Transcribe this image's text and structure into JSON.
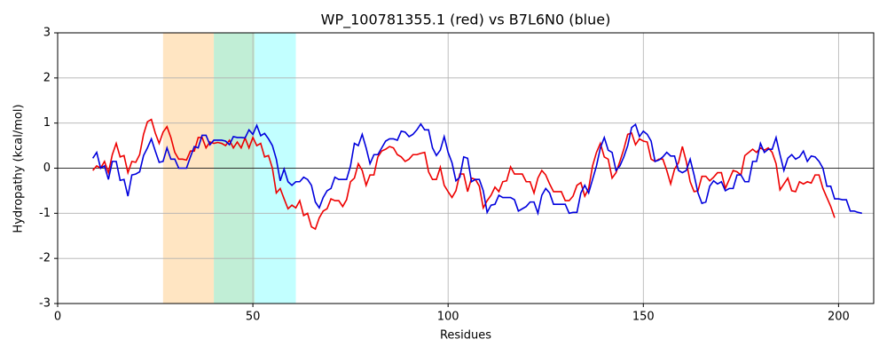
{
  "chart_data": {
    "type": "line",
    "title": "WP_100781355.1 (red) vs B7L6N0 (blue)",
    "xlabel": "Residues",
    "ylabel": "Hydropathy (kcal/mol)",
    "xlim": [
      0,
      209
    ],
    "ylim": [
      -3,
      3
    ],
    "xticks": [
      0,
      50,
      100,
      150,
      200
    ],
    "yticks": [
      -3,
      -2,
      -1,
      0,
      1,
      2,
      3
    ],
    "grid": true,
    "hline": 0,
    "spans": [
      {
        "start": 27,
        "end": 40,
        "color": "#ffe5c2"
      },
      {
        "start": 40,
        "end": 50.5,
        "color": "#c1eed6"
      },
      {
        "start": 50.5,
        "end": 61,
        "color": "#c2ffff"
      }
    ],
    "series": [
      {
        "color": "#ee0000",
        "x": [
          9,
          10,
          11,
          12,
          13,
          14,
          15,
          16,
          17,
          18,
          19,
          20,
          21,
          22,
          23,
          24,
          25,
          26,
          27,
          28,
          29,
          30,
          31,
          32,
          33,
          34,
          35,
          36,
          37,
          38,
          39,
          40,
          41,
          42,
          43,
          44,
          45,
          46,
          47,
          48,
          49,
          50,
          51,
          52,
          53,
          54,
          55,
          56,
          57,
          58,
          59,
          60,
          61,
          62,
          63,
          64,
          65,
          66,
          67,
          68,
          69,
          70,
          71,
          72,
          73,
          74,
          75,
          76,
          77,
          78,
          79,
          80,
          81,
          82,
          83,
          84,
          85,
          86,
          87,
          88,
          89,
          90,
          91,
          92,
          93,
          94,
          95,
          96,
          97,
          98,
          99,
          100,
          101,
          102,
          103,
          104,
          105,
          106,
          107,
          108,
          109,
          110,
          111,
          112,
          113,
          114,
          115,
          116,
          117,
          118,
          119,
          120,
          121,
          122,
          123,
          124,
          125,
          126,
          127,
          128,
          129,
          130,
          131,
          132,
          133,
          134,
          135,
          136,
          137,
          138,
          139,
          140,
          141,
          142,
          143,
          144,
          145,
          146,
          147,
          148,
          149,
          150,
          151,
          152,
          153,
          154,
          155,
          156,
          157,
          158,
          159,
          160,
          161,
          162,
          163,
          164,
          165,
          166,
          167,
          168,
          169,
          170,
          171,
          172,
          173,
          174,
          175,
          176,
          177,
          178,
          179,
          180,
          181,
          182,
          183,
          184,
          185,
          186,
          187,
          188,
          189,
          190,
          191,
          192,
          193,
          194,
          195,
          196,
          197,
          198,
          199
        ],
        "values": [
          -0.05,
          0.05,
          0.0,
          0.15,
          -0.1,
          0.3,
          0.55,
          0.25,
          0.28,
          -0.1,
          0.15,
          0.13,
          0.3,
          0.75,
          1.03,
          1.08,
          0.78,
          0.55,
          0.8,
          0.92,
          0.68,
          0.35,
          0.2,
          0.2,
          0.18,
          0.38,
          0.38,
          0.68,
          0.68,
          0.45,
          0.58,
          0.55,
          0.57,
          0.55,
          0.5,
          0.62,
          0.45,
          0.58,
          0.45,
          0.67,
          0.45,
          0.68,
          0.5,
          0.55,
          0.25,
          0.28,
          0.0,
          -0.55,
          -0.45,
          -0.68,
          -0.9,
          -0.82,
          -0.88,
          -0.72,
          -1.05,
          -1.0,
          -1.3,
          -1.35,
          -1.1,
          -0.95,
          -0.9,
          -0.68,
          -0.72,
          -0.72,
          -0.85,
          -0.7,
          -0.3,
          -0.22,
          0.1,
          -0.05,
          -0.38,
          -0.15,
          -0.15,
          0.25,
          0.38,
          0.42,
          0.48,
          0.45,
          0.3,
          0.25,
          0.15,
          0.2,
          0.3,
          0.3,
          0.33,
          0.35,
          -0.08,
          -0.25,
          -0.25,
          0.02,
          -0.38,
          -0.52,
          -0.65,
          -0.5,
          -0.13,
          -0.13,
          -0.52,
          -0.22,
          -0.25,
          -0.4,
          -0.88,
          -0.72,
          -0.6,
          -0.42,
          -0.52,
          -0.3,
          -0.28,
          0.03,
          -0.13,
          -0.13,
          -0.13,
          -0.3,
          -0.3,
          -0.55,
          -0.22,
          -0.05,
          -0.15,
          -0.35,
          -0.52,
          -0.52,
          -0.52,
          -0.72,
          -0.72,
          -0.62,
          -0.38,
          -0.32,
          -0.62,
          -0.45,
          0.05,
          0.35,
          0.55,
          0.25,
          0.2,
          -0.22,
          -0.1,
          0.15,
          0.42,
          0.75,
          0.78,
          0.52,
          0.65,
          0.6,
          0.58,
          0.2,
          0.15,
          0.2,
          0.2,
          -0.05,
          -0.35,
          -0.02,
          0.12,
          0.48,
          0.15,
          -0.3,
          -0.52,
          -0.5,
          -0.18,
          -0.18,
          -0.28,
          -0.2,
          -0.1,
          -0.1,
          -0.45,
          -0.25,
          -0.05,
          -0.08,
          -0.15,
          0.28,
          0.35,
          0.42,
          0.35,
          0.45,
          0.4,
          0.45,
          0.35,
          0.1,
          -0.48,
          -0.35,
          -0.22,
          -0.5,
          -0.52,
          -0.3,
          -0.35,
          -0.3,
          -0.33,
          -0.15,
          -0.15,
          -0.45,
          -0.65,
          -0.85,
          -1.1
        ]
      },
      {
        "color": "#0000dd",
        "x": [
          9,
          10,
          11,
          12,
          13,
          14,
          15,
          16,
          17,
          18,
          19,
          20,
          21,
          22,
          23,
          24,
          25,
          26,
          27,
          28,
          29,
          30,
          31,
          32,
          33,
          34,
          35,
          36,
          37,
          38,
          39,
          40,
          41,
          42,
          43,
          44,
          45,
          46,
          47,
          48,
          49,
          50,
          51,
          52,
          53,
          54,
          55,
          56,
          57,
          58,
          59,
          60,
          61,
          62,
          63,
          64,
          65,
          66,
          67,
          68,
          69,
          70,
          71,
          72,
          73,
          74,
          75,
          76,
          77,
          78,
          79,
          80,
          81,
          82,
          83,
          84,
          85,
          86,
          87,
          88,
          89,
          90,
          91,
          92,
          93,
          94,
          95,
          96,
          97,
          98,
          99,
          100,
          101,
          102,
          103,
          104,
          105,
          106,
          107,
          108,
          109,
          110,
          111,
          112,
          113,
          114,
          115,
          116,
          117,
          118,
          119,
          120,
          121,
          122,
          123,
          124,
          125,
          126,
          127,
          128,
          129,
          130,
          131,
          132,
          133,
          134,
          135,
          136,
          137,
          138,
          139,
          140,
          141,
          142,
          143,
          144,
          145,
          146,
          147,
          148,
          149,
          150,
          151,
          152,
          153,
          154,
          155,
          156,
          157,
          158,
          159,
          160,
          161,
          162,
          163,
          164,
          165,
          166,
          167,
          168,
          169,
          170,
          171,
          172,
          173,
          174,
          175,
          176,
          177,
          178,
          179,
          180,
          181,
          182,
          183,
          184,
          185,
          186,
          187,
          188,
          189,
          190,
          191,
          192,
          193,
          194,
          195,
          196,
          197,
          198,
          199,
          200,
          201,
          202,
          203,
          204,
          205,
          206
        ],
        "values": [
          0.22,
          0.35,
          0.0,
          0.05,
          -0.25,
          0.15,
          0.15,
          -0.27,
          -0.25,
          -0.62,
          -0.15,
          -0.13,
          -0.08,
          0.28,
          0.45,
          0.65,
          0.38,
          0.13,
          0.15,
          0.45,
          0.2,
          0.2,
          0.0,
          0.0,
          0.0,
          0.25,
          0.48,
          0.45,
          0.73,
          0.73,
          0.52,
          0.62,
          0.62,
          0.62,
          0.6,
          0.52,
          0.7,
          0.68,
          0.68,
          0.67,
          0.85,
          0.75,
          0.95,
          0.72,
          0.77,
          0.65,
          0.5,
          0.2,
          -0.28,
          -0.02,
          -0.3,
          -0.38,
          -0.3,
          -0.3,
          -0.2,
          -0.25,
          -0.38,
          -0.75,
          -0.88,
          -0.65,
          -0.5,
          -0.45,
          -0.2,
          -0.25,
          -0.25,
          -0.25,
          0.05,
          0.55,
          0.5,
          0.75,
          0.45,
          0.1,
          0.3,
          0.3,
          0.45,
          0.6,
          0.65,
          0.65,
          0.62,
          0.82,
          0.8,
          0.7,
          0.75,
          0.85,
          0.98,
          0.85,
          0.85,
          0.45,
          0.28,
          0.4,
          0.7,
          0.35,
          0.12,
          -0.28,
          -0.2,
          0.25,
          0.22,
          -0.3,
          -0.25,
          -0.25,
          -0.5,
          -0.98,
          -0.82,
          -0.8,
          -0.6,
          -0.65,
          -0.65,
          -0.65,
          -0.7,
          -0.95,
          -0.9,
          -0.85,
          -0.75,
          -0.75,
          -1.0,
          -0.6,
          -0.45,
          -0.55,
          -0.8,
          -0.8,
          -0.8,
          -0.8,
          -1.0,
          -0.98,
          -0.98,
          -0.55,
          -0.38,
          -0.55,
          -0.25,
          0.05,
          0.45,
          0.68,
          0.4,
          0.35,
          -0.05,
          0.05,
          0.25,
          0.5,
          0.9,
          0.97,
          0.7,
          0.82,
          0.75,
          0.6,
          0.15,
          0.18,
          0.25,
          0.35,
          0.27,
          0.27,
          -0.05,
          -0.1,
          -0.05,
          0.2,
          -0.15,
          -0.55,
          -0.78,
          -0.75,
          -0.4,
          -0.28,
          -0.35,
          -0.3,
          -0.5,
          -0.45,
          -0.45,
          -0.15,
          -0.15,
          -0.3,
          -0.3,
          0.15,
          0.15,
          0.55,
          0.35,
          0.42,
          0.42,
          0.68,
          0.3,
          -0.05,
          0.22,
          0.3,
          0.2,
          0.25,
          0.38,
          0.15,
          0.27,
          0.25,
          0.15,
          0.0,
          -0.4,
          -0.4,
          -0.68,
          -0.68,
          -0.7,
          -0.7,
          -0.95,
          -0.95,
          -0.98,
          -1.0
        ]
      }
    ]
  }
}
